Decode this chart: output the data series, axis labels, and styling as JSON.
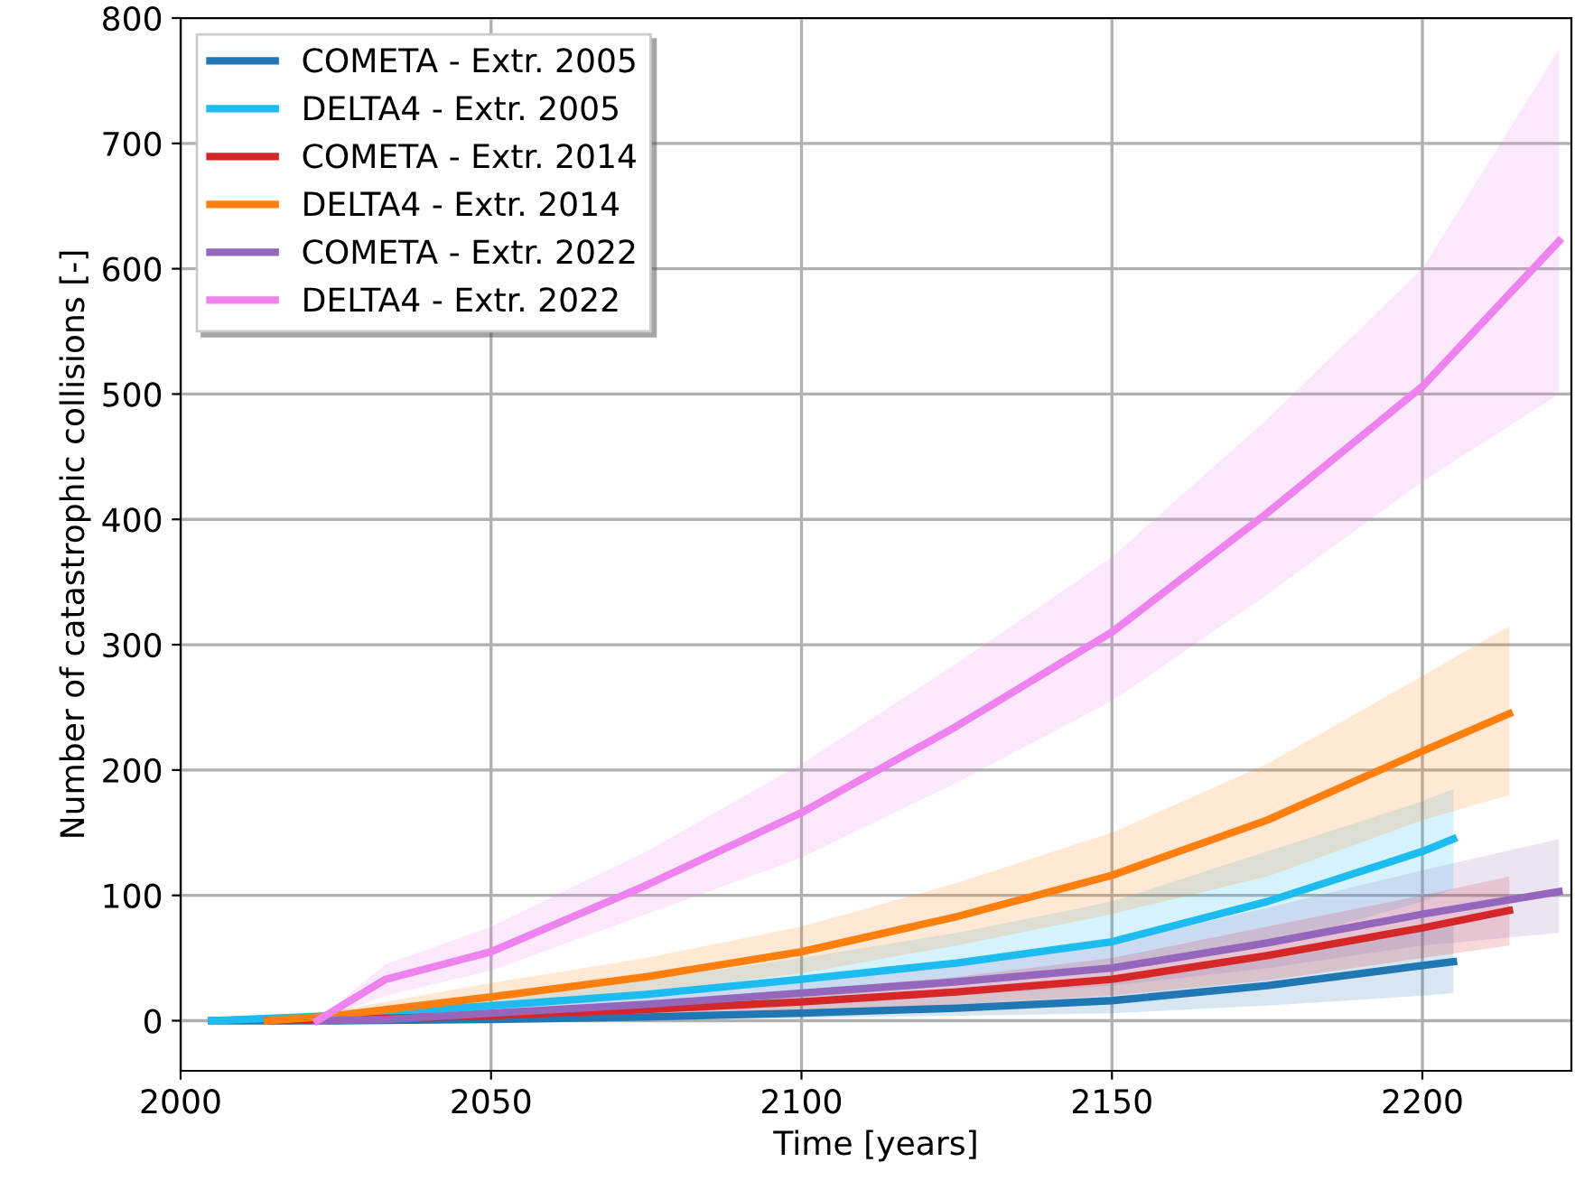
{
  "chart_data": {
    "type": "line",
    "xlabel": "Time [years]",
    "ylabel": "Number of catastrophic collisions [-]",
    "xlim": [
      2000,
      2224
    ],
    "xticks": [
      2000,
      2050,
      2100,
      2150,
      2200
    ],
    "ylim": [
      -40,
      800
    ],
    "yticks": [
      0,
      100,
      200,
      300,
      400,
      500,
      600,
      700,
      800
    ],
    "grid": true,
    "legend": "top left",
    "marker": "none",
    "line_style": "solid",
    "series": [
      {
        "name": "COMETA - Extr. 2005",
        "color": "#1f77b4",
        "x": [
          2005,
          2025,
          2050,
          2075,
          2100,
          2125,
          2150,
          2175,
          2200,
          2205
        ],
        "values": [
          0,
          0,
          1,
          3,
          6,
          10,
          16,
          28,
          44,
          47
        ],
        "lower": [
          0,
          0,
          0,
          1,
          2,
          4,
          6,
          12,
          20,
          22
        ],
        "upper": [
          0,
          1,
          4,
          8,
          13,
          20,
          30,
          50,
          75,
          80
        ]
      },
      {
        "name": "DELTA4 - Extr. 2005",
        "color": "#1cbcf0",
        "x": [
          2005,
          2025,
          2050,
          2075,
          2100,
          2125,
          2150,
          2175,
          2200,
          2205
        ],
        "values": [
          0,
          4,
          12,
          21,
          33,
          46,
          63,
          95,
          135,
          145
        ],
        "lower": [
          0,
          1,
          5,
          10,
          18,
          28,
          40,
          60,
          95,
          105
        ],
        "upper": [
          0,
          8,
          20,
          32,
          50,
          70,
          95,
          135,
          175,
          185
        ]
      },
      {
        "name": "COMETA - Extr. 2014",
        "color": "#d62728",
        "x": [
          2014,
          2025,
          2050,
          2075,
          2100,
          2125,
          2150,
          2175,
          2200,
          2214
        ],
        "values": [
          0,
          1,
          4,
          9,
          15,
          23,
          33,
          52,
          74,
          88
        ],
        "lower": [
          0,
          0,
          1,
          4,
          8,
          13,
          20,
          32,
          50,
          60
        ],
        "upper": [
          0,
          2,
          8,
          15,
          24,
          35,
          50,
          75,
          100,
          115
        ]
      },
      {
        "name": "DELTA4 - Extr. 2014",
        "color": "#ff7f0e",
        "x": [
          2014,
          2025,
          2050,
          2075,
          2100,
          2125,
          2150,
          2175,
          2200,
          2214
        ],
        "values": [
          0,
          4,
          19,
          35,
          55,
          83,
          116,
          160,
          215,
          245
        ],
        "lower": [
          0,
          1,
          10,
          22,
          38,
          60,
          85,
          115,
          160,
          180
        ],
        "upper": [
          0,
          8,
          30,
          50,
          75,
          110,
          150,
          205,
          275,
          315
        ]
      },
      {
        "name": "COMETA - Extr. 2022",
        "color": "#9467bd",
        "x": [
          2022,
          2033,
          2050,
          2075,
          2100,
          2125,
          2150,
          2175,
          2200,
          2222
        ],
        "values": [
          0,
          1,
          6,
          13,
          22,
          31,
          42,
          62,
          85,
          103
        ],
        "lower": [
          0,
          0,
          2,
          6,
          12,
          20,
          28,
          42,
          60,
          70
        ],
        "upper": [
          0,
          3,
          12,
          22,
          34,
          48,
          62,
          90,
          120,
          145
        ]
      },
      {
        "name": "DELTA4 - Extr. 2022",
        "color": "#ee82ee",
        "x": [
          2022,
          2033,
          2050,
          2075,
          2100,
          2125,
          2150,
          2175,
          2200,
          2222
        ],
        "values": [
          0,
          33,
          55,
          108,
          166,
          235,
          310,
          405,
          506,
          622
        ],
        "lower": [
          0,
          20,
          40,
          85,
          130,
          190,
          255,
          340,
          430,
          500
        ],
        "upper": [
          0,
          45,
          75,
          135,
          205,
          285,
          370,
          480,
          600,
          775
        ]
      }
    ]
  }
}
